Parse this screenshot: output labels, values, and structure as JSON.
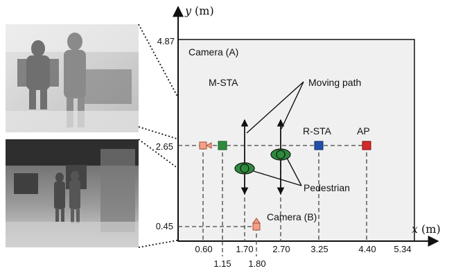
{
  "axes": {
    "x_var": "x",
    "x_unit": "(m)",
    "y_var": "y",
    "y_unit": "(m)"
  },
  "ticks": {
    "x_top_row": [
      "0.60",
      "1.70",
      "2.70",
      "3.25",
      "4.40",
      "5.34"
    ],
    "x_bottom_row": [
      "1.15",
      "1.80"
    ],
    "y": [
      "4.87",
      "2.65",
      "0.45"
    ]
  },
  "labels": {
    "camera_a": "Camera (A)",
    "camera_b": "Camera (B)",
    "m_sta": "M-STA",
    "r_sta": "R-STA",
    "ap": "AP",
    "moving_path": "Moving path",
    "pedestrian": "Pedestrian"
  },
  "colors": {
    "room_fill": "#f0f0f0",
    "camera": "#f4a088",
    "m_sta": "#2e8b3e",
    "r_sta": "#1f4fa8",
    "ap": "#d42a2a",
    "pedestrian": "#2e8b3e"
  },
  "images": [
    {
      "name": "depth-image-camera-a",
      "icon": "depth-image-icon"
    },
    {
      "name": "depth-image-camera-b",
      "icon": "depth-image-icon"
    }
  ]
}
